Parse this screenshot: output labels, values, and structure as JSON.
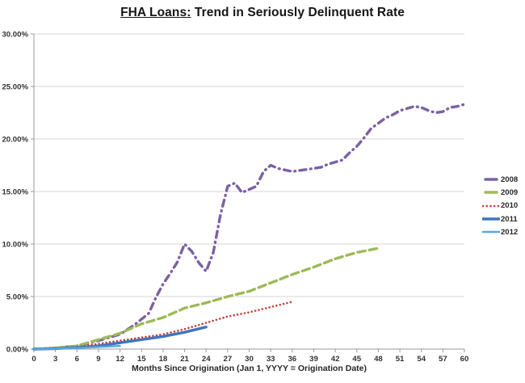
{
  "title": {
    "underlined": "FHA Loans:",
    "rest": " Trend in Seriously Delinquent Rate"
  },
  "chart_data": {
    "type": "line",
    "title": "FHA Loans: Trend in Seriously Delinquent Rate",
    "xlabel": "Months Since Origination (Jan 1, YYYY = Origination Date)",
    "ylabel": "",
    "xlim": [
      0,
      60
    ],
    "ylim": [
      0,
      30
    ],
    "x_ticks": [
      0,
      3,
      6,
      9,
      12,
      15,
      18,
      21,
      24,
      27,
      30,
      33,
      36,
      39,
      42,
      45,
      48,
      51,
      54,
      57,
      60
    ],
    "y_ticks": [
      0,
      5,
      10,
      15,
      20,
      25,
      30
    ],
    "y_tick_labels": [
      "0.00%",
      "5.00%",
      "10.00%",
      "15.00%",
      "20.00%",
      "25.00%",
      "30.00%"
    ],
    "grid": true,
    "legend_position": "right",
    "colors": {
      "gridline": "#d6d6d6",
      "axis": "#9a9a9a",
      "tick_text": "#333333"
    },
    "series": [
      {
        "name": "2008",
        "color": "#7c61a5",
        "style": "dashdot",
        "width": 3.4,
        "points": [
          [
            0,
            0
          ],
          [
            3,
            0.1
          ],
          [
            6,
            0.3
          ],
          [
            9,
            0.8
          ],
          [
            12,
            1.4
          ],
          [
            14,
            2.3
          ],
          [
            16,
            3.4
          ],
          [
            17,
            4.9
          ],
          [
            18,
            6.2
          ],
          [
            19,
            7.2
          ],
          [
            20,
            8.3
          ],
          [
            21,
            10.0
          ],
          [
            22,
            9.3
          ],
          [
            23,
            8.2
          ],
          [
            24,
            7.4
          ],
          [
            25,
            9.2
          ],
          [
            26,
            12.8
          ],
          [
            27,
            15.5
          ],
          [
            28,
            15.8
          ],
          [
            29,
            14.9
          ],
          [
            30,
            15.2
          ],
          [
            31,
            15.5
          ],
          [
            32,
            16.9
          ],
          [
            33,
            17.5
          ],
          [
            34,
            17.2
          ],
          [
            36,
            16.9
          ],
          [
            38,
            17.1
          ],
          [
            40,
            17.3
          ],
          [
            41,
            17.6
          ],
          [
            42,
            17.8
          ],
          [
            43,
            18.0
          ],
          [
            44,
            18.7
          ],
          [
            45,
            19.3
          ],
          [
            46,
            20.1
          ],
          [
            47,
            21.0
          ],
          [
            48,
            21.5
          ],
          [
            49,
            22.0
          ],
          [
            50,
            22.3
          ],
          [
            51,
            22.7
          ],
          [
            52,
            22.9
          ],
          [
            53,
            23.1
          ],
          [
            54,
            23.0
          ],
          [
            55,
            22.7
          ],
          [
            56,
            22.5
          ],
          [
            57,
            22.6
          ],
          [
            58,
            23.0
          ],
          [
            59,
            23.1
          ],
          [
            60,
            23.3
          ]
        ]
      },
      {
        "name": "2009",
        "color": "#9bbb59",
        "style": "dash",
        "width": 3.4,
        "points": [
          [
            0,
            0
          ],
          [
            3,
            0.1
          ],
          [
            6,
            0.3
          ],
          [
            9,
            0.9
          ],
          [
            12,
            1.5
          ],
          [
            15,
            2.4
          ],
          [
            18,
            3.0
          ],
          [
            21,
            3.9
          ],
          [
            24,
            4.4
          ],
          [
            27,
            5.0
          ],
          [
            30,
            5.5
          ],
          [
            33,
            6.3
          ],
          [
            36,
            7.1
          ],
          [
            39,
            7.8
          ],
          [
            42,
            8.6
          ],
          [
            45,
            9.2
          ],
          [
            48,
            9.6
          ]
        ]
      },
      {
        "name": "2010",
        "color": "#c4433c",
        "style": "dot",
        "width": 2.6,
        "points": [
          [
            0,
            0
          ],
          [
            3,
            0.05
          ],
          [
            6,
            0.2
          ],
          [
            9,
            0.5
          ],
          [
            12,
            0.8
          ],
          [
            15,
            1.1
          ],
          [
            18,
            1.4
          ],
          [
            21,
            1.9
          ],
          [
            24,
            2.5
          ],
          [
            27,
            3.1
          ],
          [
            30,
            3.5
          ],
          [
            33,
            4.0
          ],
          [
            36,
            4.5
          ]
        ]
      },
      {
        "name": "2011",
        "color": "#3d76bd",
        "style": "solid",
        "width": 3.4,
        "points": [
          [
            0,
            0
          ],
          [
            3,
            0.05
          ],
          [
            6,
            0.15
          ],
          [
            9,
            0.3
          ],
          [
            12,
            0.6
          ],
          [
            15,
            0.9
          ],
          [
            18,
            1.2
          ],
          [
            21,
            1.6
          ],
          [
            24,
            2.1
          ]
        ]
      },
      {
        "name": "2012",
        "color": "#58a7da",
        "style": "solid",
        "width": 2.4,
        "points": [
          [
            0,
            0
          ],
          [
            3,
            0.05
          ],
          [
            6,
            0.1
          ],
          [
            9,
            0.2
          ],
          [
            12,
            0.3
          ]
        ]
      }
    ]
  }
}
